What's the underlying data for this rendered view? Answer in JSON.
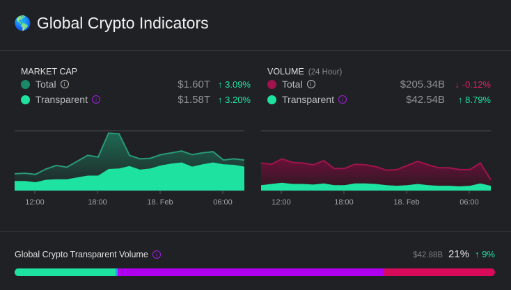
{
  "header": {
    "title": "Global Crypto Indicators",
    "icon": "globe-icon"
  },
  "market_cap": {
    "heading": "MARKET CAP",
    "legend": [
      {
        "label": "Total",
        "value": "$1.60T",
        "change": "3.09%",
        "direction": "up",
        "color": "#1a8a66"
      },
      {
        "label": "Transparent",
        "value": "$1.58T",
        "change": "3.20%",
        "direction": "up",
        "color": "#1ee3a0"
      }
    ]
  },
  "volume": {
    "heading": "VOLUME",
    "subheading": "(24 Hour)",
    "legend": [
      {
        "label": "Total",
        "value": "$205.34B",
        "change": "-0.12%",
        "direction": "down",
        "color": "#a0144e"
      },
      {
        "label": "Transparent",
        "value": "$42.54B",
        "change": "8.79%",
        "direction": "up",
        "color": "#1ee3a0"
      }
    ]
  },
  "chart_data": [
    {
      "type": "area",
      "x_ticks": [
        "12:00",
        "18:00",
        "18. Feb",
        "06:00"
      ],
      "series": [
        {
          "name": "Total",
          "values": [
            28,
            29,
            27,
            36,
            42,
            39,
            49,
            59,
            56,
            96,
            95,
            59,
            53,
            54,
            60,
            63,
            66,
            60,
            63,
            65,
            51,
            53,
            51
          ]
        },
        {
          "name": "Transparent",
          "values": [
            16,
            16,
            14,
            18,
            19,
            19,
            22,
            25,
            25,
            36,
            37,
            41,
            35,
            37,
            42,
            45,
            47,
            40,
            44,
            47,
            44,
            43,
            40
          ]
        }
      ],
      "ylim": [
        0,
        100
      ],
      "grid": true
    },
    {
      "type": "area",
      "x_ticks": [
        "12:00",
        "18:00",
        "18. Feb",
        "06:00"
      ],
      "series": [
        {
          "name": "Total",
          "values": [
            46,
            44,
            53,
            47,
            46,
            43,
            50,
            37,
            37,
            44,
            43,
            40,
            34,
            35,
            42,
            49,
            43,
            38,
            38,
            35,
            35,
            46,
            18
          ]
        },
        {
          "name": "Transparent",
          "values": [
            9,
            11,
            13,
            11,
            11,
            10,
            12,
            9,
            9,
            12,
            12,
            11,
            9,
            8,
            9,
            11,
            9,
            8,
            8,
            7,
            8,
            12,
            8
          ]
        }
      ],
      "ylim": [
        0,
        100
      ],
      "grid": true
    }
  ],
  "transparent_volume": {
    "label": "Global Crypto Transparent Volume",
    "amount": "$42.88B",
    "percent": "21%",
    "change": "9%",
    "direction": "up",
    "segments": [
      {
        "percent": 21,
        "color": "#1ee3a0"
      },
      {
        "percent": 0.4,
        "color": "#2aa0e0"
      },
      {
        "percent": 55.6,
        "color": "#b000f0"
      },
      {
        "percent": 23,
        "color": "#d80a5a"
      }
    ]
  }
}
